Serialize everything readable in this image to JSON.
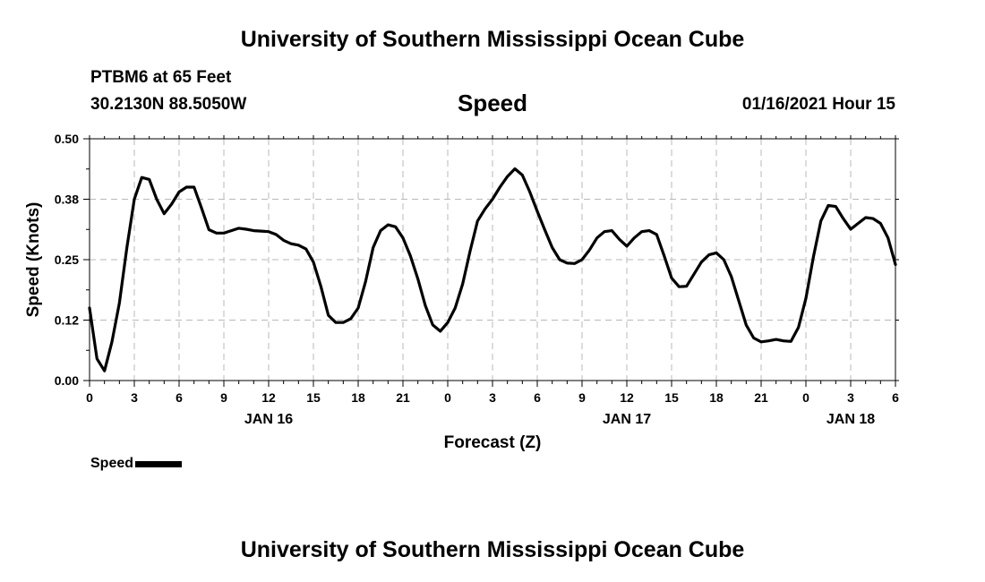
{
  "header": {
    "title": "University of Southern Mississippi Ocean Cube",
    "station": "PTBM6 at 65 Feet",
    "coords": "30.2130N 88.5050W",
    "variable": "Speed",
    "datetime": "01/16/2021 Hour 15"
  },
  "footer": {
    "title": "University of Southern Mississippi Ocean Cube"
  },
  "legend": {
    "label": "Speed",
    "color": "#000000"
  },
  "chart_data": {
    "type": "line",
    "title": "Speed",
    "xlabel": "Forecast (Z)",
    "ylabel": "Speed (Knots)",
    "xlim": [
      0,
      54
    ],
    "ylim": [
      0,
      0.5
    ],
    "grid": true,
    "legend_position": "bottom-left",
    "y_ticks": [
      "0.00",
      "0.12",
      "0.25",
      "0.38",
      "0.50"
    ],
    "x_ticks": [
      "0",
      "3",
      "6",
      "9",
      "12",
      "15",
      "18",
      "21",
      "0",
      "3",
      "6",
      "9",
      "12",
      "15",
      "18",
      "21",
      "0",
      "3",
      "6"
    ],
    "date_labels": [
      {
        "label": "JAN 16",
        "at": 12
      },
      {
        "label": "JAN 17",
        "at": 36
      },
      {
        "label": "JAN 18",
        "at": 51
      }
    ],
    "series": [
      {
        "name": "Speed",
        "color": "#000000",
        "x": [
          0,
          0.5,
          1,
          1.5,
          2,
          2.5,
          3,
          3.5,
          4,
          4.5,
          5,
          5.5,
          6,
          6.5,
          7,
          7.5,
          8,
          8.5,
          9,
          9.5,
          10,
          10.5,
          11,
          11.5,
          12,
          12.5,
          13,
          13.5,
          14,
          14.5,
          15,
          15.5,
          16,
          16.5,
          17,
          17.5,
          18,
          18.5,
          19,
          19.5,
          20,
          20.5,
          21,
          21.5,
          22,
          22.5,
          23,
          23.5,
          24,
          24.5,
          25,
          25.5,
          26,
          26.5,
          27,
          27.5,
          28,
          28.5,
          29,
          29.5,
          30,
          30.5,
          31,
          31.5,
          32,
          32.5,
          33,
          33.5,
          34,
          34.5,
          35,
          35.5,
          36,
          36.5,
          37,
          37.5,
          38,
          38.5,
          39,
          39.5,
          40,
          40.5,
          41,
          41.5,
          42,
          42.5,
          43,
          43.5,
          44,
          44.5,
          45,
          45.5,
          46,
          46.5,
          47,
          47.5,
          48,
          48.5,
          49,
          49.5,
          50,
          50.5,
          51,
          51.5,
          52,
          52.5,
          53,
          53.5,
          54
        ],
        "values": [
          0.15,
          0.045,
          0.02,
          0.08,
          0.16,
          0.275,
          0.375,
          0.42,
          0.416,
          0.375,
          0.345,
          0.365,
          0.39,
          0.4,
          0.4,
          0.357,
          0.312,
          0.305,
          0.305,
          0.31,
          0.315,
          0.313,
          0.31,
          0.309,
          0.308,
          0.302,
          0.29,
          0.283,
          0.28,
          0.272,
          0.245,
          0.195,
          0.135,
          0.12,
          0.12,
          0.128,
          0.15,
          0.205,
          0.275,
          0.31,
          0.322,
          0.318,
          0.295,
          0.258,
          0.21,
          0.155,
          0.115,
          0.102,
          0.12,
          0.15,
          0.2,
          0.268,
          0.33,
          0.355,
          0.375,
          0.4,
          0.422,
          0.438,
          0.425,
          0.39,
          0.35,
          0.312,
          0.275,
          0.25,
          0.243,
          0.242,
          0.25,
          0.27,
          0.295,
          0.308,
          0.31,
          0.292,
          0.278,
          0.295,
          0.308,
          0.31,
          0.302,
          0.258,
          0.212,
          0.194,
          0.195,
          0.22,
          0.245,
          0.26,
          0.264,
          0.25,
          0.215,
          0.165,
          0.115,
          0.088,
          0.08,
          0.082,
          0.085,
          0.082,
          0.081,
          0.11,
          0.17,
          0.255,
          0.33,
          0.362,
          0.36,
          0.335,
          0.313,
          0.325,
          0.337,
          0.335,
          0.325,
          0.295,
          0.24
        ]
      }
    ]
  }
}
